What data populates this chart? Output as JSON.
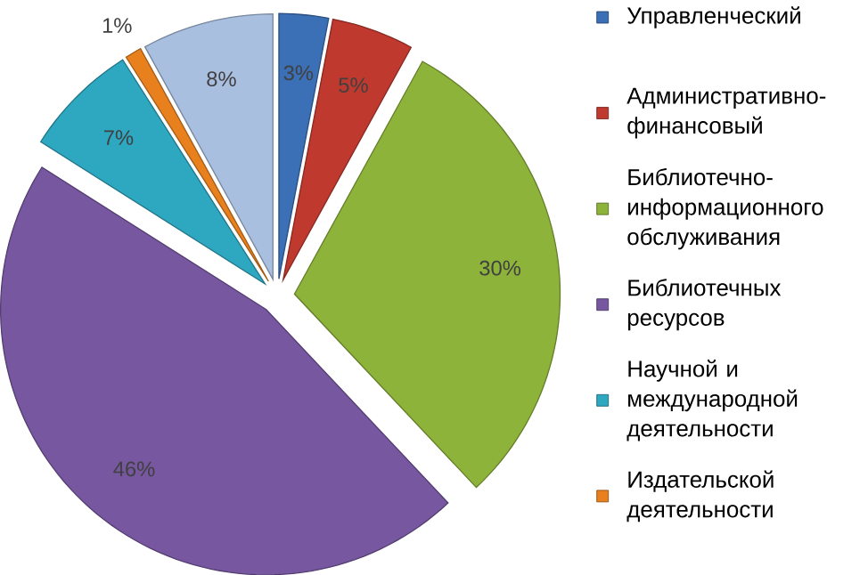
{
  "chart_data": {
    "type": "pie",
    "categories": [
      "Управленческий",
      "Административно-финансовый",
      "Библиотечно-информационного обслуживания",
      "Библиотечных ресурсов",
      "Научной и международной деятельности",
      "Издательской деятельности",
      null
    ],
    "values": [
      3,
      5,
      30,
      46,
      7,
      1,
      8
    ],
    "value_labels": [
      "3%",
      "5%",
      "30%",
      "46%",
      "7%",
      "1%",
      "8%"
    ],
    "colors": [
      "#3b6fb6",
      "#c0392f",
      "#8db33a",
      "#7657a0",
      "#2ea7c1",
      "#e8801e",
      "#a9bfe0"
    ],
    "legend": "right"
  }
}
